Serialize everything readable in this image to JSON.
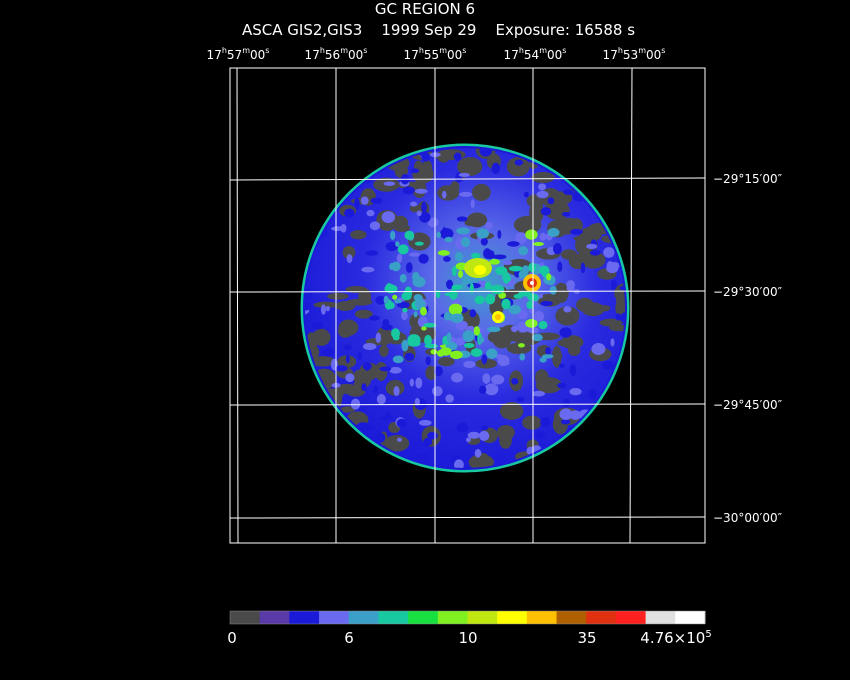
{
  "header": {
    "title": "GC REGION 6",
    "subtitle": "ASCA GIS2,GIS3    1999 Sep 29    Exposure: 16588 s"
  },
  "ra_ticks": [
    {
      "h": "17",
      "m": "57",
      "s": "00"
    },
    {
      "h": "17",
      "m": "56",
      "s": "00"
    },
    {
      "h": "17",
      "m": "55",
      "s": "00"
    },
    {
      "h": "17",
      "m": "54",
      "s": "00"
    },
    {
      "h": "17",
      "m": "53",
      "s": "00"
    }
  ],
  "dec_ticks": [
    "−29°15′00″",
    "−29°30′00″",
    "−29°45′00″",
    "−30°00′00″"
  ],
  "colorbar": {
    "colors": [
      "#4a4a4a",
      "#5a3aa8",
      "#1a1ad8",
      "#6a6af0",
      "#3aa0c8",
      "#18c8a0",
      "#18e040",
      "#80f020",
      "#c0e810",
      "#ffff00",
      "#ffc000",
      "#b06000",
      "#e03010",
      "#ff2020",
      "#e0e0e0",
      "#ffffff"
    ],
    "labels": {
      "l0": "0",
      "l1": "6",
      "l2": "10",
      "l3": "35",
      "l4_base": "4.76×10",
      "l4_exp": "5"
    }
  }
}
